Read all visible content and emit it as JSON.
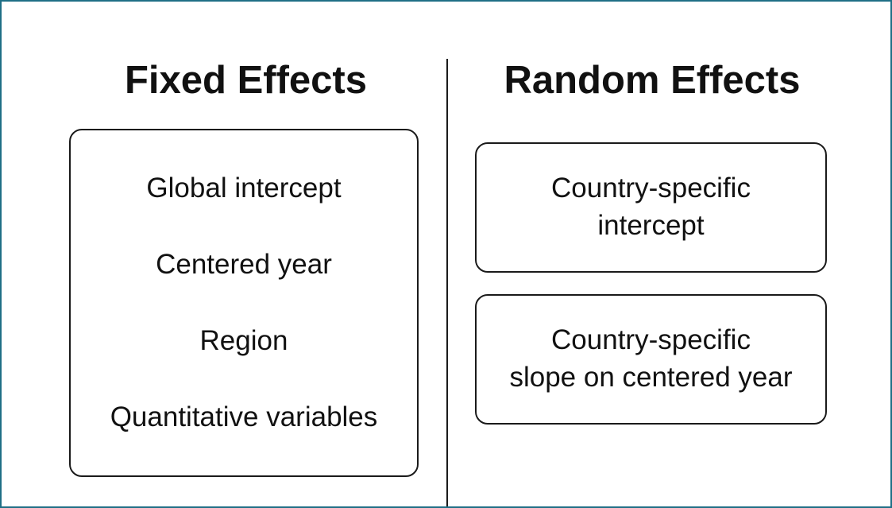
{
  "fixed_effects": {
    "title": "Fixed Effects",
    "items": [
      "Global intercept",
      "Centered year",
      "Region",
      "Quantitative variables"
    ]
  },
  "random_effects": {
    "title": "Random Effects",
    "items": [
      {
        "line1": "Country-specific",
        "line2": "intercept"
      },
      {
        "line1": "Country-specific",
        "line2": "slope on centered year"
      }
    ]
  },
  "colors": {
    "frame_border": "#1f6f86",
    "line": "#1a1a1a",
    "text": "#111111",
    "background": "#ffffff"
  }
}
